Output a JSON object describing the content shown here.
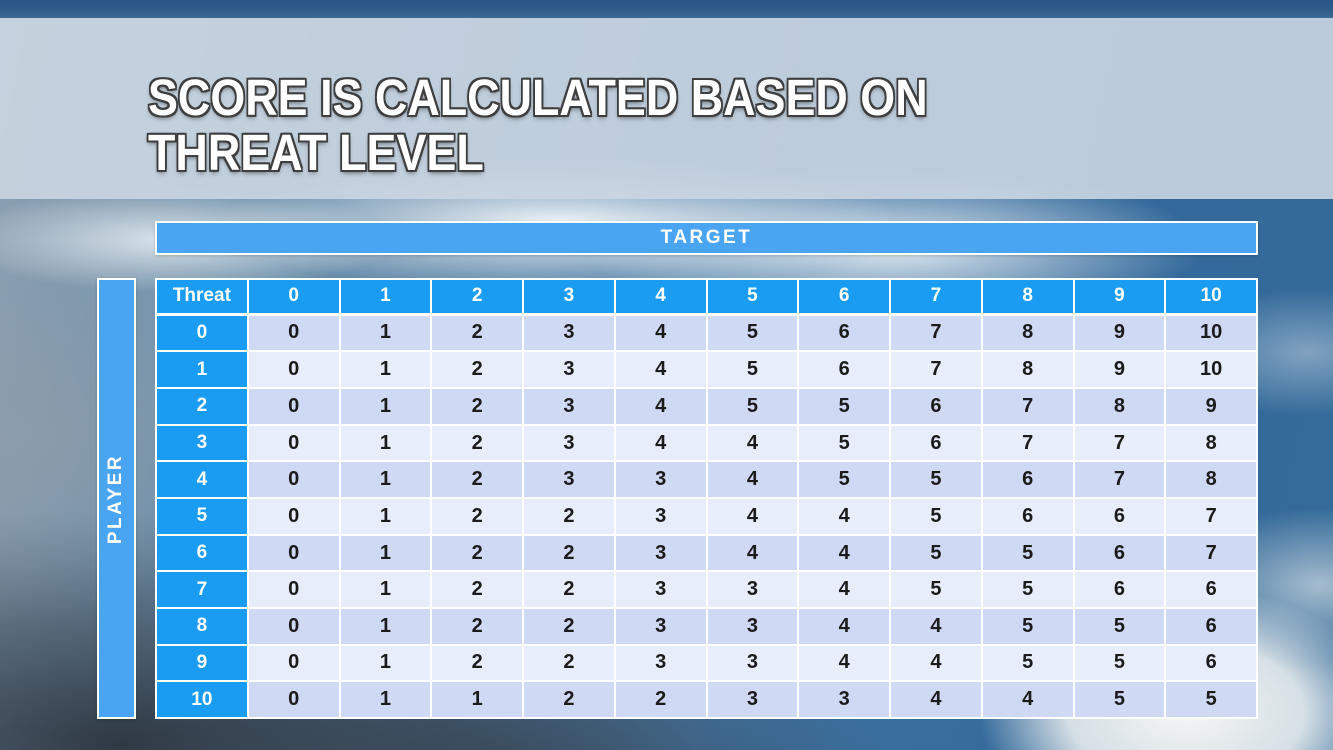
{
  "slide": {
    "title_line1": "SCORE IS CALCULATED BASED ON",
    "title_line2": "THREAT LEVEL"
  },
  "matrix": {
    "target_label": "TARGET",
    "player_label": "PLAYER",
    "corner_label": "Threat",
    "column_headers": [
      "0",
      "1",
      "2",
      "3",
      "4",
      "5",
      "6",
      "7",
      "8",
      "9",
      "10"
    ],
    "rows": [
      {
        "label": "0",
        "values": [
          "0",
          "1",
          "2",
          "3",
          "4",
          "5",
          "6",
          "7",
          "8",
          "9",
          "10"
        ]
      },
      {
        "label": "1",
        "values": [
          "0",
          "1",
          "2",
          "3",
          "4",
          "5",
          "6",
          "7",
          "8",
          "9",
          "10"
        ]
      },
      {
        "label": "2",
        "values": [
          "0",
          "1",
          "2",
          "3",
          "4",
          "5",
          "5",
          "6",
          "7",
          "8",
          "9"
        ]
      },
      {
        "label": "3",
        "values": [
          "0",
          "1",
          "2",
          "3",
          "4",
          "4",
          "5",
          "6",
          "7",
          "7",
          "8"
        ]
      },
      {
        "label": "4",
        "values": [
          "0",
          "1",
          "2",
          "3",
          "3",
          "4",
          "5",
          "5",
          "6",
          "7",
          "8"
        ]
      },
      {
        "label": "5",
        "values": [
          "0",
          "1",
          "2",
          "2",
          "3",
          "4",
          "4",
          "5",
          "6",
          "6",
          "7"
        ]
      },
      {
        "label": "6",
        "values": [
          "0",
          "1",
          "2",
          "2",
          "3",
          "4",
          "4",
          "5",
          "5",
          "6",
          "7"
        ]
      },
      {
        "label": "7",
        "values": [
          "0",
          "1",
          "2",
          "2",
          "3",
          "3",
          "4",
          "5",
          "5",
          "6",
          "6"
        ]
      },
      {
        "label": "8",
        "values": [
          "0",
          "1",
          "2",
          "2",
          "3",
          "3",
          "4",
          "4",
          "5",
          "5",
          "6"
        ]
      },
      {
        "label": "9",
        "values": [
          "0",
          "1",
          "2",
          "2",
          "3",
          "3",
          "4",
          "4",
          "5",
          "5",
          "6"
        ]
      },
      {
        "label": "10",
        "values": [
          "0",
          "1",
          "1",
          "2",
          "2",
          "3",
          "3",
          "4",
          "4",
          "5",
          "5"
        ]
      }
    ]
  },
  "colors": {
    "header_cell_blue": "#1a9cf2",
    "axis_band_blue": "#49a4f1",
    "row_band_dark": "#cfd9f3",
    "row_band_light": "#e8edfb",
    "top_accent_bar": "#2e5a88",
    "title_text": "#ffffff",
    "title_outline": "#3e3e3e",
    "cell_text": "#1b1b1b",
    "grid_border": "#ffffff"
  }
}
